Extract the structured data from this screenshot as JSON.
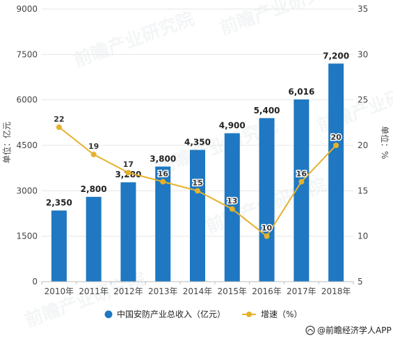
{
  "chart_data": {
    "type": "bar+line",
    "categories": [
      "2010年",
      "2011年",
      "2012年",
      "2013年",
      "2014年",
      "2015年",
      "2016年",
      "2017年",
      "2018年"
    ],
    "series": [
      {
        "name": "中国安防产业总收入（亿元）",
        "type": "bar",
        "axis": "left",
        "values": [
          2350,
          2800,
          3280,
          3800,
          4350,
          4900,
          5400,
          6016,
          7200
        ],
        "labels": [
          "2,350",
          "2,800",
          "3,280",
          "3,800",
          "4,350",
          "4,900",
          "5,400",
          "6,016",
          "7,200"
        ],
        "color": "#1f78c1"
      },
      {
        "name": "增速（%）",
        "type": "line",
        "axis": "right",
        "values": [
          22,
          19,
          17,
          16,
          15,
          13,
          10,
          16,
          20
        ],
        "labels": [
          "22",
          "19",
          "17",
          "16",
          "15",
          "13",
          "10",
          "16",
          "20"
        ],
        "color": "#e5b12d"
      }
    ],
    "y_left": {
      "label": "单位：亿元",
      "min": 0,
      "max": 9000,
      "ticks": [
        0,
        1500,
        3000,
        4500,
        6000,
        7500,
        9000
      ],
      "tick_labels": [
        "0",
        "1500",
        "3000",
        "4500",
        "6000",
        "7500",
        "9000"
      ]
    },
    "y_right": {
      "label": "单位：%",
      "min": 5,
      "max": 35,
      "ticks": [
        5,
        10,
        15,
        20,
        25,
        30,
        35
      ],
      "tick_labels": [
        "5",
        "10",
        "15",
        "20",
        "25",
        "30",
        "35"
      ]
    },
    "grid": true,
    "legend_position": "bottom"
  },
  "watermark": "前瞻产业研究院",
  "source": "@前瞻经济学人APP"
}
